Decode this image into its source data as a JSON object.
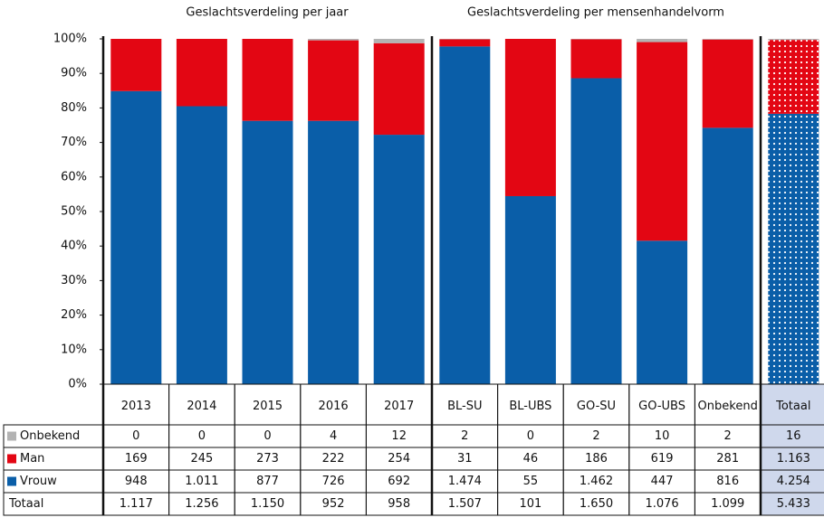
{
  "chart_data": {
    "type": "bar",
    "stacked_percent": true,
    "panel_titles": [
      "Geslachtsverdeling per jaar",
      "Geslachtsverdeling per mensenhandelvorm"
    ],
    "categories": [
      "2013",
      "2014",
      "2015",
      "2016",
      "2017",
      "BL-SU",
      "BL-UBS",
      "GO-SU",
      "GO-UBS",
      "Onbekend",
      "Totaal"
    ],
    "series": [
      {
        "name": "Onbekend",
        "color": "#b3b3b3",
        "values": [
          0,
          0,
          0,
          4,
          12,
          2,
          0,
          2,
          10,
          2,
          16
        ],
        "value_labels": [
          "0",
          "0",
          "0",
          "4",
          "12",
          "2",
          "0",
          "2",
          "10",
          "2",
          "16"
        ]
      },
      {
        "name": "Man",
        "color": "#e30613",
        "values": [
          169,
          245,
          273,
          222,
          254,
          31,
          46,
          186,
          619,
          281,
          1163
        ],
        "value_labels": [
          "169",
          "245",
          "273",
          "222",
          "254",
          "31",
          "46",
          "186",
          "619",
          "281",
          "1.163"
        ]
      },
      {
        "name": "Vrouw",
        "color": "#0a5ea8",
        "values": [
          948,
          1011,
          877,
          726,
          692,
          1474,
          55,
          1462,
          447,
          816,
          4254
        ],
        "value_labels": [
          "948",
          "1.011",
          "877",
          "726",
          "692",
          "1.474",
          "55",
          "1.462",
          "447",
          "816",
          "4.254"
        ]
      }
    ],
    "totals_name": "Totaal",
    "totals": [
      1117,
      1256,
      1150,
      952,
      958,
      1507,
      101,
      1650,
      1076,
      1099,
      5433
    ],
    "totals_labels": [
      "1.117",
      "1.256",
      "1.150",
      "952",
      "958",
      "1.507",
      "101",
      "1.650",
      "1.076",
      "1.099",
      "5.433"
    ],
    "ylim": [
      0,
      100
    ],
    "yticks": [
      {
        "value": 0,
        "label": "0%"
      },
      {
        "value": 10,
        "label": "10%"
      },
      {
        "value": 20,
        "label": "20%"
      },
      {
        "value": 30,
        "label": "30%"
      },
      {
        "value": 40,
        "label": "40%"
      },
      {
        "value": 50,
        "label": "50%"
      },
      {
        "value": 60,
        "label": "60%"
      },
      {
        "value": 70,
        "label": "70%"
      },
      {
        "value": 80,
        "label": "80%"
      },
      {
        "value": 90,
        "label": "90%"
      },
      {
        "value": 100,
        "label": "100%"
      }
    ]
  }
}
